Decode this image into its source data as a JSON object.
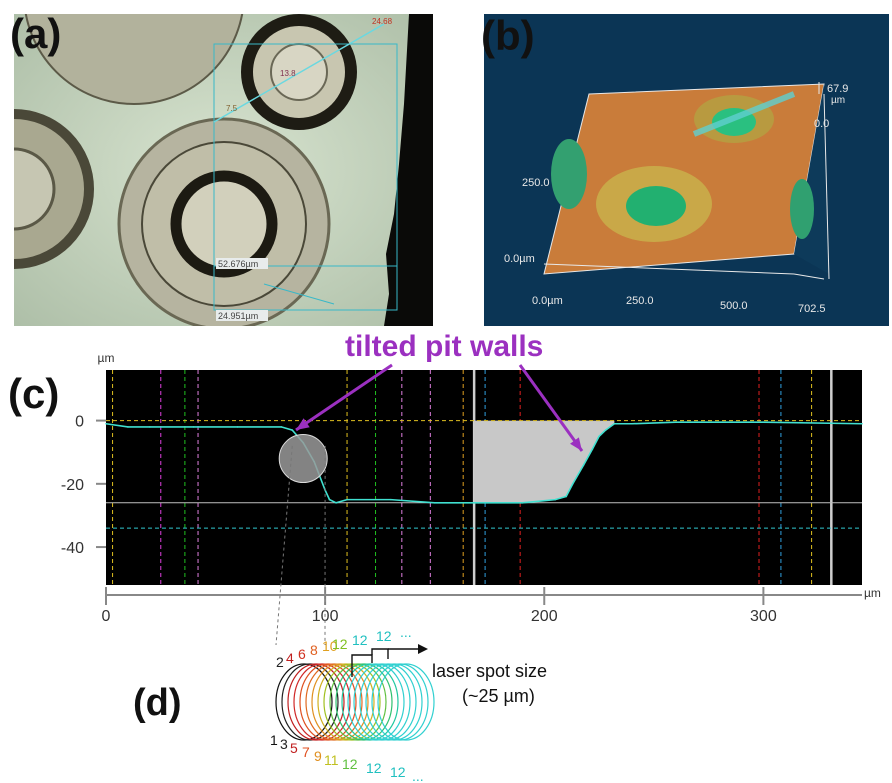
{
  "panels": {
    "a": {
      "label": "(a)",
      "measure_1": "52.676µm",
      "measure_2": "24.951µm",
      "markers": [
        "24.68",
        "13.8",
        "7.5"
      ]
    },
    "b": {
      "label": "(b)",
      "z_max": "67.9",
      "z_unit": "µm",
      "z_tick": "0.0",
      "y_tick_250": "250.0",
      "y_tick_0": "0.0µm",
      "x_ticks": [
        "0.0µm",
        "250.0",
        "500.0",
        "702.5"
      ]
    },
    "c": {
      "label": "(c)",
      "y_unit": "µm",
      "x_unit": "µm",
      "annotation": "tilted pit walls",
      "y_ticks": [
        "0",
        "-20",
        "-40"
      ],
      "x_ticks": [
        "0",
        "100",
        "200",
        "300"
      ]
    },
    "d": {
      "label": "(d)",
      "spot_label_1": "laser spot size",
      "spot_label_2": "(~25 µm)",
      "top_seq": [
        "2",
        "4",
        "6",
        "8",
        "10",
        "12",
        "12",
        "12",
        "..."
      ],
      "bottom_seq": [
        "1",
        "3",
        "5",
        "7",
        "9",
        "11",
        "12",
        "12",
        "12",
        "..."
      ]
    }
  },
  "chart_data": {
    "type": "line",
    "xlabel": "µm",
    "ylabel": "µm",
    "xlim": [
      0,
      345
    ],
    "ylim": [
      -52,
      16
    ],
    "x_ticks": [
      0,
      100,
      200,
      300
    ],
    "y_ticks": [
      0,
      -20,
      -40
    ],
    "grid": false,
    "series": [
      {
        "x": [
          0,
          10,
          20,
          40,
          60,
          80,
          85,
          90,
          95,
          100,
          102,
          105,
          110,
          130,
          150,
          170,
          190,
          205,
          210,
          213,
          218,
          222,
          225,
          228,
          232,
          240,
          260,
          300,
          345
        ],
        "values": [
          -1,
          -2,
          -2,
          -2,
          -2,
          -2,
          -3,
          -7,
          -13,
          -22,
          -25,
          -26,
          -25,
          -25,
          -26,
          -26,
          -26,
          -25,
          -24,
          -20,
          -14,
          -9,
          -5,
          -3,
          -1,
          -1,
          -0.5,
          -0.5,
          -1
        ]
      }
    ],
    "reference_lines": {
      "zero": 0,
      "level_1": -26,
      "level_2": -34
    }
  }
}
